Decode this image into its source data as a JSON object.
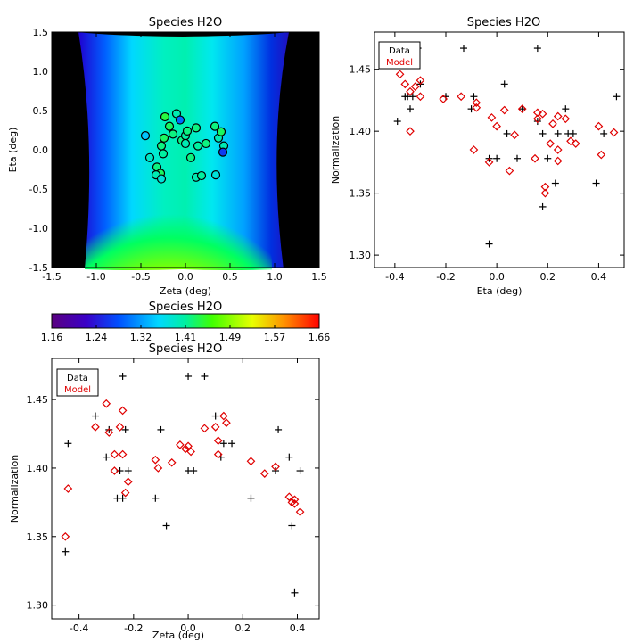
{
  "chart_data": [
    {
      "type": "heatmap",
      "title": "Species H2O",
      "xlabel": "Zeta (deg)",
      "ylabel": "Eta (deg)",
      "xlim": [
        -1.5,
        1.5
      ],
      "ylim": [
        -1.5,
        1.5
      ],
      "xticks": [
        "-1.5",
        "-1.0",
        "-0.5",
        "0.0",
        "0.5",
        "1.0",
        "1.5"
      ],
      "yticks": [
        "-1.5",
        "-1.0",
        "-0.5",
        "0.0",
        "0.5",
        "1.0",
        "1.5"
      ],
      "colorbar": {
        "title": "Species H2O",
        "ticks": [
          "1.16",
          "1.24",
          "1.32",
          "1.41",
          "1.49",
          "1.57",
          "1.66"
        ],
        "range": [
          1.16,
          1.66
        ]
      },
      "points": [
        {
          "x": -0.45,
          "y": 0.18,
          "v": 1.35
        },
        {
          "x": -0.4,
          "y": -0.1,
          "v": 1.39
        },
        {
          "x": -0.32,
          "y": -0.22,
          "v": 1.42
        },
        {
          "x": -0.28,
          "y": -0.3,
          "v": 1.43
        },
        {
          "x": -0.33,
          "y": -0.32,
          "v": 1.4
        },
        {
          "x": -0.27,
          "y": -0.37,
          "v": 1.38
        },
        {
          "x": -0.27,
          "y": 0.05,
          "v": 1.42
        },
        {
          "x": -0.25,
          "y": -0.05,
          "v": 1.41
        },
        {
          "x": -0.24,
          "y": 0.15,
          "v": 1.43
        },
        {
          "x": -0.23,
          "y": 0.42,
          "v": 1.44
        },
        {
          "x": -0.18,
          "y": 0.3,
          "v": 1.43
        },
        {
          "x": -0.14,
          "y": 0.2,
          "v": 1.42
        },
        {
          "x": -0.1,
          "y": 0.46,
          "v": 1.4
        },
        {
          "x": -0.06,
          "y": 0.38,
          "v": 1.3
        },
        {
          "x": -0.04,
          "y": 0.12,
          "v": 1.42
        },
        {
          "x": 0.0,
          "y": 0.18,
          "v": 1.41
        },
        {
          "x": 0.0,
          "y": 0.08,
          "v": 1.4
        },
        {
          "x": 0.02,
          "y": 0.24,
          "v": 1.42
        },
        {
          "x": 0.06,
          "y": -0.1,
          "v": 1.42
        },
        {
          "x": 0.12,
          "y": 0.28,
          "v": 1.42
        },
        {
          "x": 0.14,
          "y": 0.05,
          "v": 1.41
        },
        {
          "x": 0.12,
          "y": -0.35,
          "v": 1.4
        },
        {
          "x": 0.18,
          "y": -0.33,
          "v": 1.41
        },
        {
          "x": 0.23,
          "y": 0.08,
          "v": 1.42
        },
        {
          "x": 0.34,
          "y": -0.32,
          "v": 1.38
        },
        {
          "x": 0.33,
          "y": 0.3,
          "v": 1.42
        },
        {
          "x": 0.37,
          "y": 0.15,
          "v": 1.4
        },
        {
          "x": 0.4,
          "y": 0.23,
          "v": 1.43
        },
        {
          "x": 0.43,
          "y": 0.05,
          "v": 1.4
        },
        {
          "x": 0.42,
          "y": -0.03,
          "v": 1.27
        }
      ]
    },
    {
      "type": "scatter",
      "title": "Species H2O",
      "xlabel": "Eta (deg)",
      "ylabel": "Normalization",
      "xlim": [
        -0.48,
        0.5
      ],
      "ylim": [
        1.29,
        1.48
      ],
      "xticks": [
        "-0.4",
        "-0.2",
        "0.0",
        "0.2",
        "0.4"
      ],
      "yticks": [
        "1.30",
        "1.35",
        "1.40",
        "1.45"
      ],
      "legend": {
        "position": "top-left",
        "entries": [
          "Data",
          "Model"
        ]
      },
      "series": [
        {
          "name": "Data",
          "marker": "plus",
          "color": "#000000",
          "points": [
            [
              -0.39,
              1.408
            ],
            [
              -0.36,
              1.428
            ],
            [
              -0.35,
              1.428
            ],
            [
              -0.34,
              1.418
            ],
            [
              -0.33,
              1.428
            ],
            [
              -0.31,
              1.467
            ],
            [
              -0.3,
              1.438
            ],
            [
              -0.2,
              1.428
            ],
            [
              -0.13,
              1.467
            ],
            [
              -0.09,
              1.428
            ],
            [
              -0.1,
              1.418
            ],
            [
              -0.03,
              1.378
            ],
            [
              -0.03,
              1.309
            ],
            [
              0.0,
              1.378
            ],
            [
              0.03,
              1.438
            ],
            [
              0.04,
              1.398
            ],
            [
              0.08,
              1.378
            ],
            [
              0.1,
              1.418
            ],
            [
              0.16,
              1.467
            ],
            [
              0.16,
              1.408
            ],
            [
              0.18,
              1.398
            ],
            [
              0.18,
              1.339
            ],
            [
              0.2,
              1.378
            ],
            [
              0.23,
              1.358
            ],
            [
              0.24,
              1.398
            ],
            [
              0.27,
              1.418
            ],
            [
              0.28,
              1.398
            ],
            [
              0.3,
              1.398
            ],
            [
              0.39,
              1.358
            ],
            [
              0.42,
              1.398
            ],
            [
              0.47,
              1.428
            ]
          ]
        },
        {
          "name": "Model",
          "marker": "diamond",
          "color": "#e00000",
          "points": [
            [
              -0.38,
              1.446
            ],
            [
              -0.36,
              1.438
            ],
            [
              -0.34,
              1.432
            ],
            [
              -0.34,
              1.4
            ],
            [
              -0.32,
              1.436
            ],
            [
              -0.3,
              1.441
            ],
            [
              -0.3,
              1.428
            ],
            [
              -0.21,
              1.426
            ],
            [
              -0.14,
              1.428
            ],
            [
              -0.08,
              1.423
            ],
            [
              -0.08,
              1.419
            ],
            [
              -0.09,
              1.385
            ],
            [
              -0.03,
              1.375
            ],
            [
              -0.02,
              1.411
            ],
            [
              0.0,
              1.404
            ],
            [
              0.03,
              1.417
            ],
            [
              0.05,
              1.368
            ],
            [
              0.07,
              1.397
            ],
            [
              0.1,
              1.418
            ],
            [
              0.15,
              1.378
            ],
            [
              0.16,
              1.415
            ],
            [
              0.16,
              1.41
            ],
            [
              0.18,
              1.414
            ],
            [
              0.19,
              1.35
            ],
            [
              0.19,
              1.355
            ],
            [
              0.21,
              1.39
            ],
            [
              0.22,
              1.406
            ],
            [
              0.24,
              1.412
            ],
            [
              0.24,
              1.385
            ],
            [
              0.24,
              1.376
            ],
            [
              0.27,
              1.41
            ],
            [
              0.29,
              1.392
            ],
            [
              0.31,
              1.39
            ],
            [
              0.4,
              1.404
            ],
            [
              0.41,
              1.381
            ],
            [
              0.46,
              1.399
            ]
          ]
        }
      ]
    },
    {
      "type": "scatter",
      "title": "Species H2O",
      "xlabel": "Zeta (deg)",
      "ylabel": "Normalization",
      "xlim": [
        -0.5,
        0.48
      ],
      "ylim": [
        1.29,
        1.48
      ],
      "xticks": [
        "-0.4",
        "-0.2",
        "0.0",
        "0.2",
        "0.4"
      ],
      "yticks": [
        "1.30",
        "1.35",
        "1.40",
        "1.45"
      ],
      "legend": {
        "position": "top-left",
        "entries": [
          "Data",
          "Model"
        ]
      },
      "series": [
        {
          "name": "Data",
          "marker": "plus",
          "color": "#000000",
          "points": [
            [
              -0.45,
              1.339
            ],
            [
              -0.44,
              1.418
            ],
            [
              -0.34,
              1.438
            ],
            [
              -0.29,
              1.428
            ],
            [
              -0.3,
              1.408
            ],
            [
              -0.26,
              1.378
            ],
            [
              -0.25,
              1.398
            ],
            [
              -0.24,
              1.378
            ],
            [
              -0.24,
              1.467
            ],
            [
              -0.23,
              1.428
            ],
            [
              -0.22,
              1.398
            ],
            [
              -0.12,
              1.378
            ],
            [
              -0.1,
              1.428
            ],
            [
              -0.08,
              1.358
            ],
            [
              0.0,
              1.467
            ],
            [
              0.0,
              1.398
            ],
            [
              0.02,
              1.398
            ],
            [
              0.06,
              1.467
            ],
            [
              0.1,
              1.438
            ],
            [
              0.12,
              1.408
            ],
            [
              0.13,
              1.418
            ],
            [
              0.16,
              1.418
            ],
            [
              0.23,
              1.378
            ],
            [
              0.32,
              1.398
            ],
            [
              0.33,
              1.428
            ],
            [
              0.37,
              1.408
            ],
            [
              0.38,
              1.358
            ],
            [
              0.39,
              1.309
            ],
            [
              0.41,
              1.398
            ]
          ]
        },
        {
          "name": "Model",
          "marker": "diamond",
          "color": "#e00000",
          "points": [
            [
              -0.45,
              1.35
            ],
            [
              -0.44,
              1.385
            ],
            [
              -0.34,
              1.43
            ],
            [
              -0.3,
              1.447
            ],
            [
              -0.29,
              1.426
            ],
            [
              -0.27,
              1.41
            ],
            [
              -0.27,
              1.398
            ],
            [
              -0.25,
              1.43
            ],
            [
              -0.24,
              1.442
            ],
            [
              -0.24,
              1.41
            ],
            [
              -0.23,
              1.382
            ],
            [
              -0.22,
              1.39
            ],
            [
              -0.12,
              1.406
            ],
            [
              -0.11,
              1.4
            ],
            [
              -0.06,
              1.404
            ],
            [
              -0.03,
              1.417
            ],
            [
              -0.01,
              1.414
            ],
            [
              0.0,
              1.416
            ],
            [
              0.01,
              1.412
            ],
            [
              0.06,
              1.429
            ],
            [
              0.1,
              1.43
            ],
            [
              0.11,
              1.41
            ],
            [
              0.11,
              1.42
            ],
            [
              0.13,
              1.438
            ],
            [
              0.14,
              1.433
            ],
            [
              0.23,
              1.405
            ],
            [
              0.28,
              1.396
            ],
            [
              0.32,
              1.401
            ],
            [
              0.37,
              1.379
            ],
            [
              0.38,
              1.375
            ],
            [
              0.39,
              1.377
            ],
            [
              0.39,
              1.374
            ],
            [
              0.41,
              1.368
            ]
          ]
        }
      ]
    }
  ]
}
